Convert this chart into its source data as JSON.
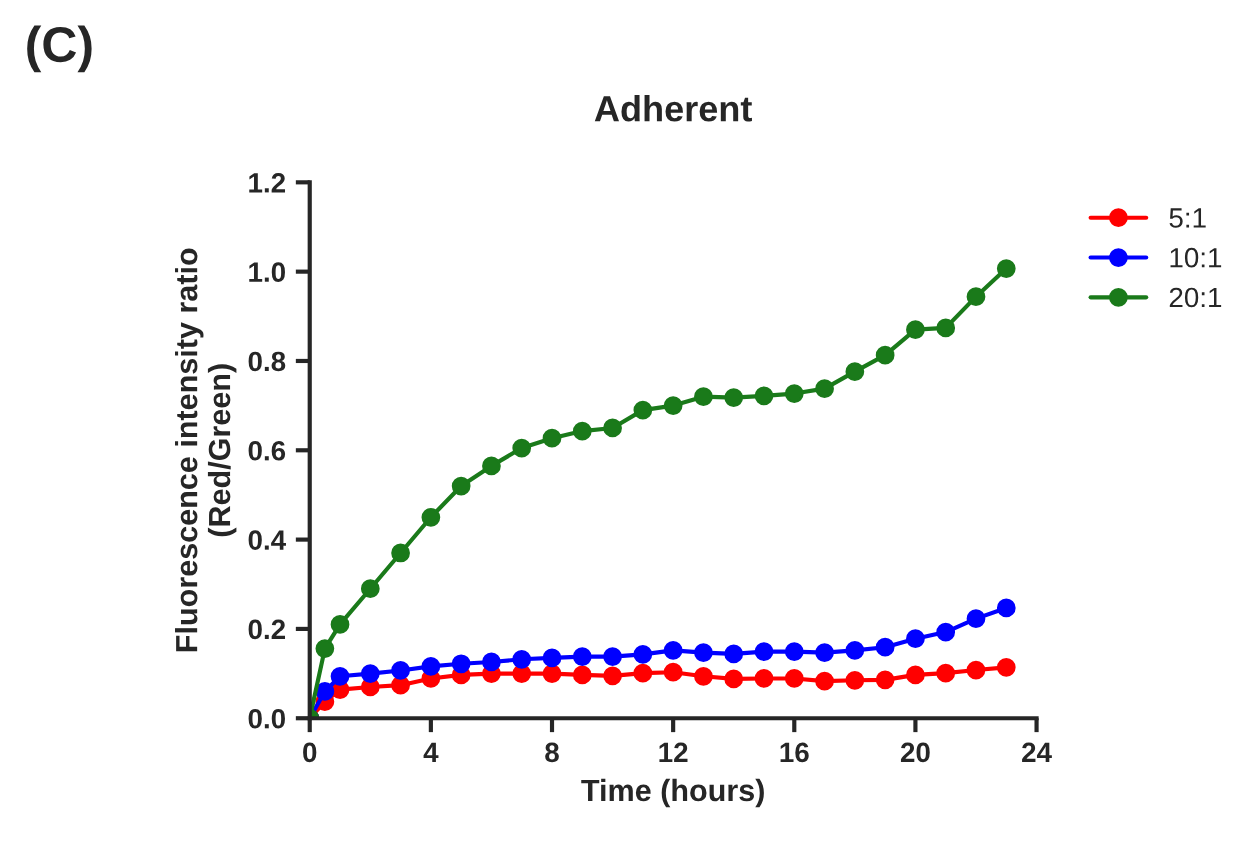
{
  "chart_data": {
    "type": "line",
    "title": "Adherent",
    "xlabel": "Time (hours)",
    "ylabel": "Fluorescence intensity ratio\n(Red/Green)",
    "annotations": [
      "(C)"
    ],
    "x": [
      0,
      0.5,
      1,
      2,
      3,
      4,
      5,
      6,
      7,
      8,
      9,
      10,
      11,
      12,
      13,
      14,
      15,
      16,
      17,
      18,
      19,
      20,
      21,
      22,
      23
    ],
    "series": [
      {
        "name": "5:1",
        "color": "#ff0000",
        "values": [
          0,
          0.037,
          0.064,
          0.07,
          0.074,
          0.089,
          0.097,
          0.1,
          0.1,
          0.1,
          0.097,
          0.095,
          0.101,
          0.103,
          0.094,
          0.088,
          0.089,
          0.089,
          0.083,
          0.085,
          0.086,
          0.097,
          0.101,
          0.108,
          0.114
        ]
      },
      {
        "name": "10:1",
        "color": "#0000ff",
        "values": [
          0,
          0.06,
          0.094,
          0.1,
          0.107,
          0.116,
          0.122,
          0.126,
          0.132,
          0.135,
          0.138,
          0.138,
          0.143,
          0.152,
          0.147,
          0.144,
          0.149,
          0.149,
          0.147,
          0.152,
          0.159,
          0.178,
          0.193,
          0.223,
          0.247
        ]
      },
      {
        "name": "20:1",
        "color": "#1a7a1a",
        "values": [
          0,
          0.156,
          0.21,
          0.29,
          0.37,
          0.45,
          0.52,
          0.565,
          0.605,
          0.627,
          0.643,
          0.65,
          0.69,
          0.7,
          0.72,
          0.718,
          0.722,
          0.727,
          0.738,
          0.776,
          0.813,
          0.87,
          0.874,
          0.944,
          1.007
        ]
      }
    ],
    "xlim": [
      0,
      24
    ],
    "xticks": [
      0,
      4,
      8,
      12,
      16,
      20,
      24
    ],
    "ylim": [
      0,
      1.2
    ],
    "yticks": [
      {
        "value": 0,
        "label": "0.0"
      },
      {
        "value": 0.2,
        "label": "0.2"
      },
      {
        "value": 0.4,
        "label": "0.4"
      },
      {
        "value": 0.6,
        "label": "0.6"
      },
      {
        "value": 0.8,
        "label": "0.8"
      },
      {
        "value": 1.0,
        "label": "1.0"
      },
      {
        "value": 1.2,
        "label": "1.2"
      }
    ],
    "grid": false,
    "legend": "top right",
    "marker": "circle",
    "line_style": "solid"
  }
}
